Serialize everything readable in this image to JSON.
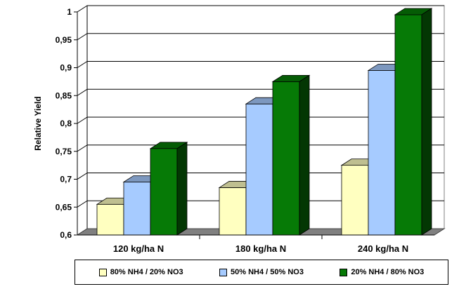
{
  "chart_data": {
    "type": "bar",
    "ylabel": "Relative Yield",
    "xlabel": "",
    "ylim": [
      0.6,
      1.0
    ],
    "yticks": [
      "0,6",
      "0,65",
      "0,7",
      "0,75",
      "0,8",
      "0,85",
      "0,9",
      "0,95",
      "1"
    ],
    "ytick_values": [
      0.6,
      0.65,
      0.7,
      0.75,
      0.8,
      0.85,
      0.9,
      0.95,
      1.0
    ],
    "grid": true,
    "legend_position": "bottom",
    "categories": [
      "120 kg/ha N",
      "180 kg/ha N",
      "240 kg/ha N"
    ],
    "series": [
      {
        "name": "80% NH4 / 20% NO3",
        "color": "#ffffc0",
        "values": [
          0.655,
          0.685,
          0.725
        ]
      },
      {
        "name": "50% NH4 / 50% NO3",
        "color": "#a6cbff",
        "values": [
          0.695,
          0.835,
          0.895
        ]
      },
      {
        "name": "20% NH4 / 80% NO3",
        "color": "#067a06",
        "values": [
          0.755,
          0.875,
          0.995
        ]
      }
    ]
  }
}
